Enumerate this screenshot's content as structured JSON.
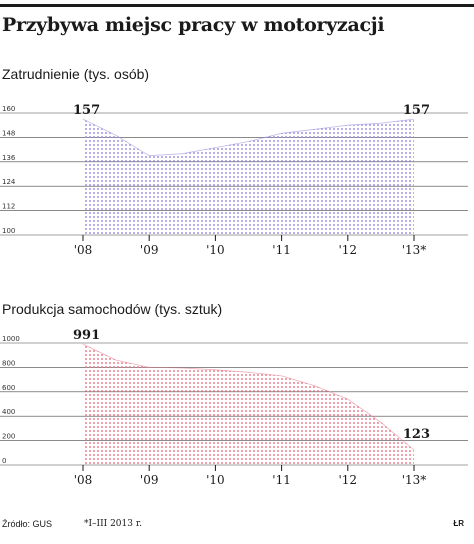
{
  "title": "Przybywa miejsc pracy w motoryzacji",
  "footer": {
    "source": "Źródło: GUS",
    "note": "*I–III 2013 r.",
    "credit": "ŁR"
  },
  "colors": {
    "employment": "#9a8fe0",
    "production": "#e87a8c",
    "text": "#1a1a1a"
  },
  "chart_data": [
    {
      "type": "area",
      "title": "Zatrudnienie (tys. osób)",
      "x": [
        0,
        0.5,
        1,
        1.5,
        2,
        2.5,
        3,
        3.5,
        4,
        4.5,
        5
      ],
      "x_ticks": [
        "'08",
        "'09",
        "'10",
        "'11",
        "'12",
        "'13*"
      ],
      "y": [
        157,
        149,
        139,
        140,
        143,
        146,
        150,
        152,
        154,
        155,
        157
      ],
      "ylim": [
        100,
        160
      ],
      "y_ticks": [
        100,
        112,
        124,
        136,
        148,
        160
      ],
      "labels": [
        {
          "index": 0,
          "text": "157"
        },
        {
          "index": 10,
          "text": "157"
        }
      ]
    },
    {
      "type": "area",
      "title": "Produkcja samochodów (tys. sztuk)",
      "x": [
        0,
        0.5,
        1,
        1.5,
        2,
        2.5,
        3,
        3.5,
        4,
        4.5,
        5
      ],
      "x_ticks": [
        "'08",
        "'09",
        "'10",
        "'11",
        "'12",
        "'13*"
      ],
      "y": [
        991,
        860,
        800,
        795,
        780,
        760,
        730,
        650,
        540,
        350,
        123
      ],
      "ylim": [
        0,
        1000
      ],
      "y_ticks": [
        0,
        200,
        400,
        600,
        800,
        1000
      ],
      "labels": [
        {
          "index": 0,
          "text": "991"
        },
        {
          "index": 10,
          "text": "123"
        }
      ]
    }
  ]
}
